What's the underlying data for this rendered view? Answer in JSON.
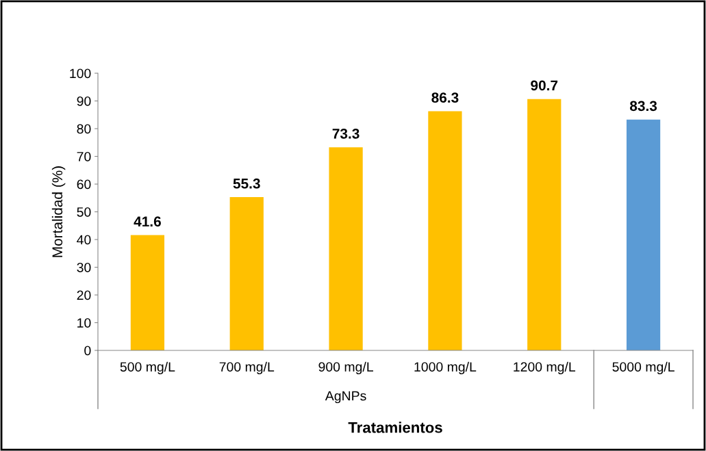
{
  "chart_data": {
    "type": "bar",
    "xlabel": "Tratamientos",
    "ylabel": "Mortalidad (%)",
    "categories": [
      "500 mg/L",
      "700 mg/L",
      "900 mg/L",
      "1000 mg/L",
      "1200 mg/L",
      "5000 mg/L"
    ],
    "values": [
      41.6,
      55.3,
      73.3,
      86.3,
      90.7,
      83.3
    ],
    "colors": [
      "#ffc000",
      "#ffc000",
      "#ffc000",
      "#ffc000",
      "#ffc000",
      "#5b9bd5"
    ],
    "ylim": [
      0,
      100
    ],
    "yticks": [
      0,
      10,
      20,
      30,
      40,
      50,
      60,
      70,
      80,
      90,
      100
    ],
    "data_labels": true,
    "grid": false,
    "legend": false,
    "annotations": [
      "AgNPs"
    ]
  }
}
